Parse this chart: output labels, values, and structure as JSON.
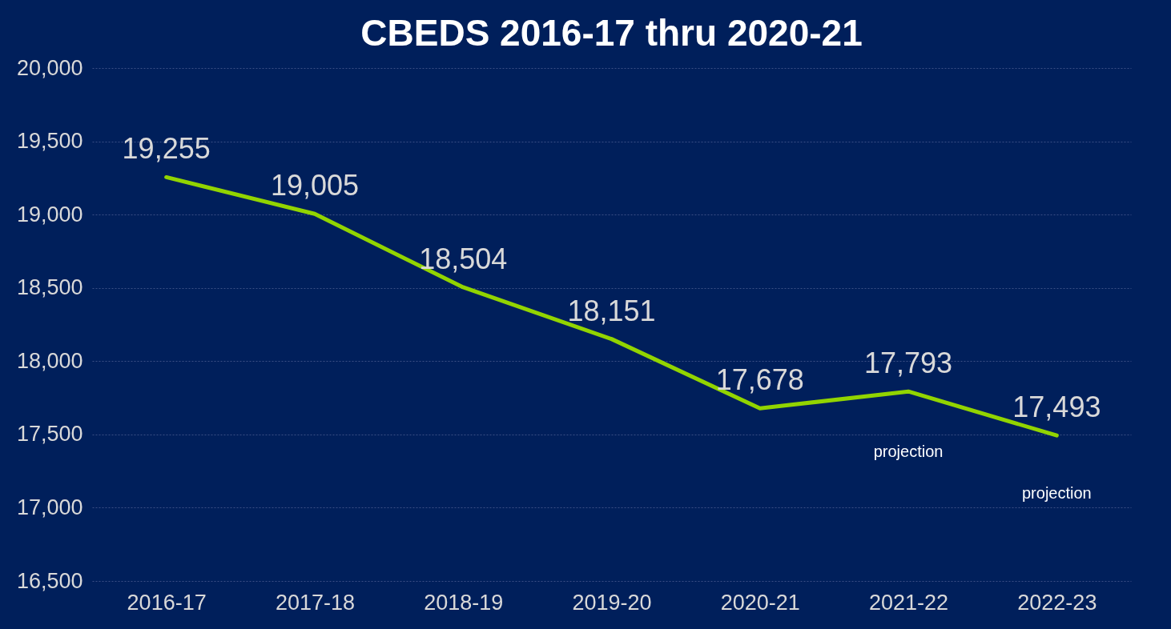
{
  "chart_data": {
    "type": "line",
    "title": "CBEDS 2016-17 thru 2020-21",
    "categories": [
      "2016-17",
      "2017-18",
      "2018-19",
      "2019-20",
      "2020-21",
      "2021-22",
      "2022-23"
    ],
    "series": [
      {
        "color": "#92d400",
        "values": [
          19255,
          19005,
          18504,
          18151,
          17678,
          17793,
          17493
        ],
        "value_labels": [
          "19,255",
          "19,005",
          "18,504",
          "18,151",
          "17,678",
          "17,793",
          "17,493"
        ]
      }
    ],
    "ylim": [
      16500,
      20000
    ],
    "yticks": [
      {
        "value": 16500,
        "label": "16,500"
      },
      {
        "value": 17000,
        "label": "17,000"
      },
      {
        "value": 17500,
        "label": "17,500"
      },
      {
        "value": 18000,
        "label": "18,000"
      },
      {
        "value": 18500,
        "label": "18,500"
      },
      {
        "value": 19000,
        "label": "19,000"
      },
      {
        "value": 19500,
        "label": "19,500"
      },
      {
        "value": 20000,
        "label": "20,000"
      }
    ],
    "grid": "y",
    "marker": "none",
    "line_style": "solid",
    "annotations": [
      "projection",
      "projection"
    ]
  }
}
